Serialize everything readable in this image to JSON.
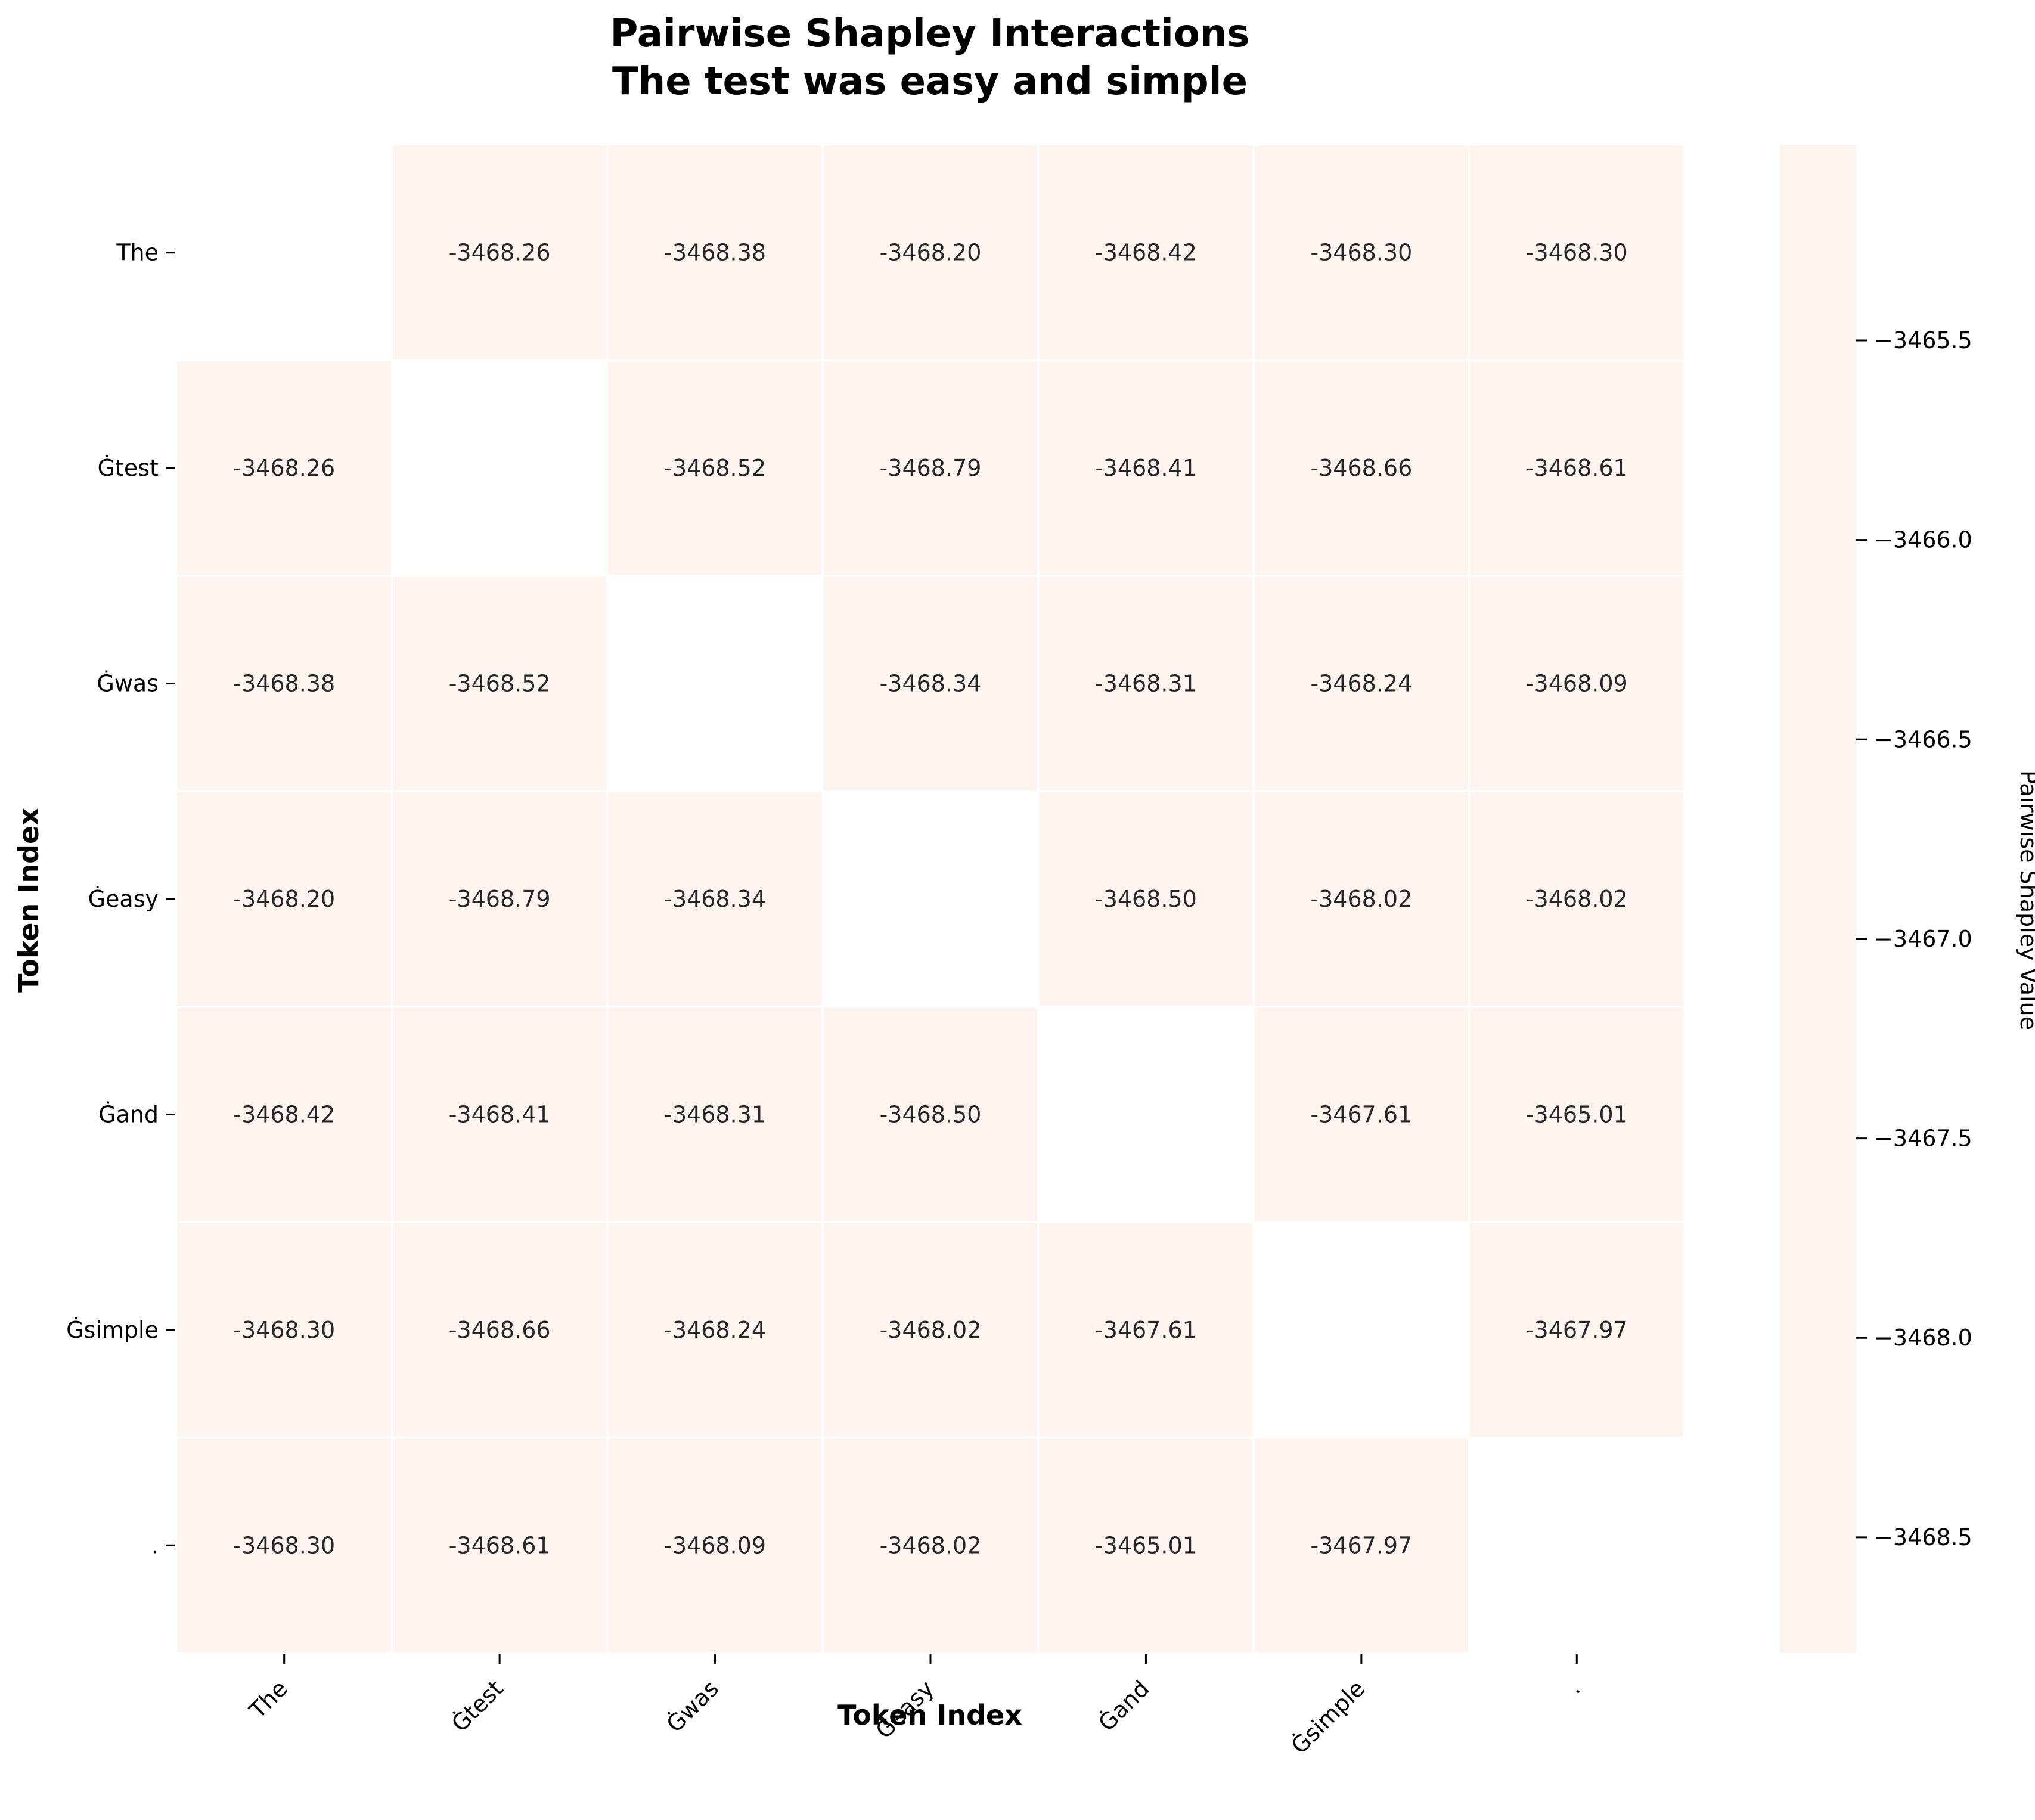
{
  "chart_data": {
    "type": "heatmap",
    "title": "Pairwise Shapley Interactions",
    "subtitle": "The test was easy and simple",
    "xlabel": "Token Index",
    "ylabel": "Token Index",
    "x_labels": [
      "The",
      "Ġtest",
      "Ġwas",
      "Ġeasy",
      "Ġand",
      "Ġsimple",
      "."
    ],
    "y_labels": [
      "The",
      "Ġtest",
      "Ġwas",
      "Ġeasy",
      "Ġand",
      "Ġsimple",
      "."
    ],
    "matrix": [
      [
        null,
        -3468.26,
        -3468.38,
        -3468.2,
        -3468.42,
        -3468.3,
        -3468.3
      ],
      [
        -3468.26,
        null,
        -3468.52,
        -3468.79,
        -3468.41,
        -3468.66,
        -3468.61
      ],
      [
        -3468.38,
        -3468.52,
        null,
        -3468.34,
        -3468.31,
        -3468.24,
        -3468.09
      ],
      [
        -3468.2,
        -3468.79,
        -3468.34,
        null,
        -3468.5,
        -3468.02,
        -3468.02
      ],
      [
        -3468.42,
        -3468.41,
        -3468.31,
        -3468.5,
        null,
        -3467.61,
        -3465.01
      ],
      [
        -3468.3,
        -3468.66,
        -3468.24,
        -3468.02,
        -3467.61,
        null,
        -3467.97
      ],
      [
        -3468.3,
        -3468.61,
        -3468.09,
        -3468.02,
        -3465.01,
        -3467.97,
        null
      ]
    ],
    "colorbar": {
      "label": "Pairwise Shapley Value",
      "ticks": [
        -3465.5,
        -3466.0,
        -3466.5,
        -3467.0,
        -3467.5,
        -3468.0,
        -3468.5
      ],
      "tick_labels": [
        "−3465.5",
        "−3466.0",
        "−3466.5",
        "−3467.0",
        "−3467.5",
        "−3468.0",
        "−3468.5"
      ],
      "range": [
        -3468.79,
        -3465.01
      ],
      "inverted": true
    },
    "cell_color": "#fdf3ef",
    "grid": false
  }
}
